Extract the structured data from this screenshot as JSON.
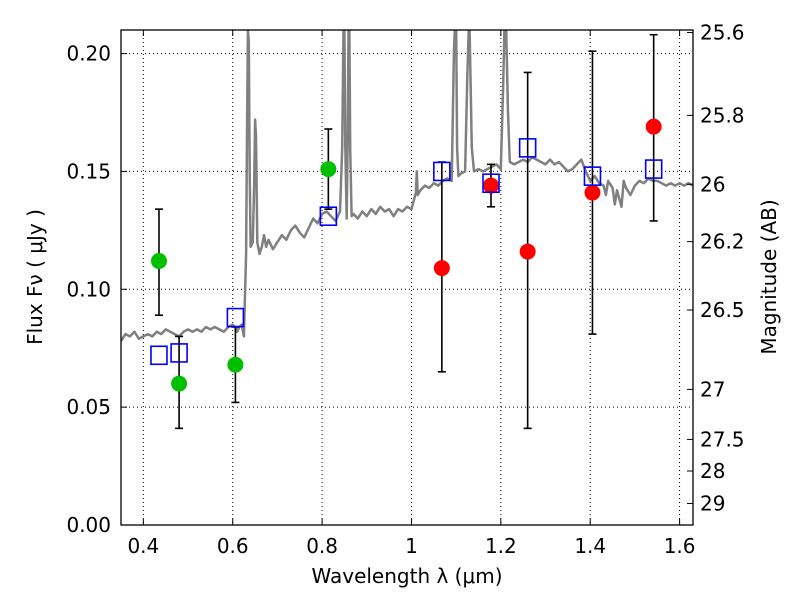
{
  "chart_data": {
    "type": "scatter",
    "title": "",
    "xlabel": "Wavelength  λ (μm)",
    "ylabel": "Flux  Fν  ( μJy )",
    "ylabel2": "Magnitude (AB)",
    "xlim": [
      0.35,
      1.63
    ],
    "ylim": [
      0.0,
      0.21
    ],
    "grid": true,
    "x_ticks": [
      {
        "value": 0.4,
        "label": "0.4"
      },
      {
        "value": 0.6,
        "label": "0.6"
      },
      {
        "value": 0.8,
        "label": "0.8"
      },
      {
        "value": 1.0,
        "label": "1"
      },
      {
        "value": 1.2,
        "label": "1.2"
      },
      {
        "value": 1.4,
        "label": "1.4"
      },
      {
        "value": 1.6,
        "label": "1.6"
      }
    ],
    "y_ticks": [
      {
        "value": 0.0,
        "label": "0.00"
      },
      {
        "value": 0.05,
        "label": "0.05"
      },
      {
        "value": 0.1,
        "label": "0.10"
      },
      {
        "value": 0.15,
        "label": "0.15"
      },
      {
        "value": 0.2,
        "label": "0.20"
      }
    ],
    "y2_ticks": [
      {
        "value": 25.6,
        "label": "25.6"
      },
      {
        "value": 25.8,
        "label": "25.8"
      },
      {
        "value": 26.0,
        "label": "26"
      },
      {
        "value": 26.2,
        "label": "26.2"
      },
      {
        "value": 26.5,
        "label": "26.5"
      },
      {
        "value": 27.0,
        "label": "27"
      },
      {
        "value": 27.5,
        "label": "27.5"
      },
      {
        "value": 28.0,
        "label": "28"
      },
      {
        "value": 29.0,
        "label": "29"
      }
    ],
    "spectrum": {
      "name": "model spectrum",
      "color": "#808080",
      "points": [
        [
          0.35,
          0.078
        ],
        [
          0.36,
          0.081
        ],
        [
          0.37,
          0.08
        ],
        [
          0.38,
          0.082
        ],
        [
          0.39,
          0.079
        ],
        [
          0.4,
          0.08
        ],
        [
          0.41,
          0.081
        ],
        [
          0.42,
          0.08
        ],
        [
          0.43,
          0.082
        ],
        [
          0.44,
          0.081
        ],
        [
          0.45,
          0.083
        ],
        [
          0.46,
          0.082
        ],
        [
          0.47,
          0.081
        ],
        [
          0.48,
          0.08
        ],
        [
          0.49,
          0.082
        ],
        [
          0.5,
          0.083
        ],
        [
          0.51,
          0.082
        ],
        [
          0.52,
          0.083
        ],
        [
          0.53,
          0.082
        ],
        [
          0.54,
          0.084
        ],
        [
          0.55,
          0.083
        ],
        [
          0.56,
          0.084
        ],
        [
          0.57,
          0.083
        ],
        [
          0.58,
          0.082
        ],
        [
          0.59,
          0.084
        ],
        [
          0.6,
          0.085
        ],
        [
          0.605,
          0.084
        ],
        [
          0.61,
          0.082
        ],
        [
          0.615,
          0.084
        ],
        [
          0.62,
          0.085
        ],
        [
          0.625,
          0.08
        ],
        [
          0.63,
          0.115
        ],
        [
          0.632,
          0.165
        ],
        [
          0.634,
          0.21
        ],
        [
          0.636,
          0.205
        ],
        [
          0.638,
          0.15
        ],
        [
          0.64,
          0.118
        ],
        [
          0.645,
          0.12
        ],
        [
          0.648,
          0.145
        ],
        [
          0.65,
          0.172
        ],
        [
          0.652,
          0.165
        ],
        [
          0.655,
          0.12
        ],
        [
          0.66,
          0.115
        ],
        [
          0.665,
          0.118
        ],
        [
          0.67,
          0.123
        ],
        [
          0.675,
          0.118
        ],
        [
          0.68,
          0.121
        ],
        [
          0.69,
          0.117
        ],
        [
          0.7,
          0.12
        ],
        [
          0.71,
          0.123
        ],
        [
          0.72,
          0.121
        ],
        [
          0.73,
          0.125
        ],
        [
          0.74,
          0.127
        ],
        [
          0.75,
          0.124
        ],
        [
          0.76,
          0.122
        ],
        [
          0.77,
          0.126
        ],
        [
          0.78,
          0.13
        ],
        [
          0.79,
          0.128
        ],
        [
          0.8,
          0.132
        ],
        [
          0.81,
          0.133
        ],
        [
          0.82,
          0.131
        ],
        [
          0.83,
          0.129
        ],
        [
          0.84,
          0.133
        ],
        [
          0.845,
          0.16
        ],
        [
          0.848,
          0.21
        ],
        [
          0.85,
          0.21
        ],
        [
          0.852,
          0.16
        ],
        [
          0.855,
          0.13
        ],
        [
          0.857,
          0.16
        ],
        [
          0.859,
          0.21
        ],
        [
          0.861,
          0.21
        ],
        [
          0.863,
          0.16
        ],
        [
          0.866,
          0.131
        ],
        [
          0.87,
          0.132
        ],
        [
          0.88,
          0.13
        ],
        [
          0.89,
          0.133
        ],
        [
          0.9,
          0.131
        ],
        [
          0.91,
          0.134
        ],
        [
          0.92,
          0.132
        ],
        [
          0.93,
          0.135
        ],
        [
          0.94,
          0.133
        ],
        [
          0.95,
          0.134
        ],
        [
          0.96,
          0.131
        ],
        [
          0.97,
          0.134
        ],
        [
          0.98,
          0.133
        ],
        [
          0.99,
          0.135
        ],
        [
          1.0,
          0.134
        ],
        [
          1.01,
          0.141
        ],
        [
          1.012,
          0.15
        ],
        [
          1.014,
          0.14
        ],
        [
          1.02,
          0.142
        ],
        [
          1.03,
          0.144
        ],
        [
          1.04,
          0.143
        ],
        [
          1.05,
          0.145
        ],
        [
          1.06,
          0.144
        ],
        [
          1.07,
          0.146
        ],
        [
          1.08,
          0.147
        ],
        [
          1.09,
          0.146
        ],
        [
          1.095,
          0.2
        ],
        [
          1.097,
          0.21
        ],
        [
          1.1,
          0.21
        ],
        [
          1.102,
          0.16
        ],
        [
          1.105,
          0.148
        ],
        [
          1.11,
          0.149
        ],
        [
          1.12,
          0.15
        ],
        [
          1.125,
          0.19
        ],
        [
          1.128,
          0.21
        ],
        [
          1.13,
          0.21
        ],
        [
          1.135,
          0.16
        ],
        [
          1.14,
          0.15
        ],
        [
          1.15,
          0.151
        ],
        [
          1.16,
          0.15
        ],
        [
          1.17,
          0.151
        ],
        [
          1.18,
          0.152
        ],
        [
          1.19,
          0.153
        ],
        [
          1.2,
          0.151
        ],
        [
          1.205,
          0.185
        ],
        [
          1.208,
          0.21
        ],
        [
          1.212,
          0.21
        ],
        [
          1.216,
          0.175
        ],
        [
          1.22,
          0.154
        ],
        [
          1.23,
          0.153
        ],
        [
          1.24,
          0.154
        ],
        [
          1.25,
          0.155
        ],
        [
          1.26,
          0.154
        ],
        [
          1.27,
          0.156
        ],
        [
          1.28,
          0.155
        ],
        [
          1.29,
          0.154
        ],
        [
          1.3,
          0.153
        ],
        [
          1.31,
          0.155
        ],
        [
          1.32,
          0.153
        ],
        [
          1.33,
          0.154
        ],
        [
          1.34,
          0.152
        ],
        [
          1.35,
          0.15
        ],
        [
          1.36,
          0.151
        ],
        [
          1.37,
          0.153
        ],
        [
          1.38,
          0.155
        ],
        [
          1.39,
          0.15
        ],
        [
          1.4,
          0.146
        ],
        [
          1.41,
          0.148
        ],
        [
          1.42,
          0.145
        ],
        [
          1.43,
          0.144
        ],
        [
          1.435,
          0.14
        ],
        [
          1.44,
          0.146
        ],
        [
          1.45,
          0.143
        ],
        [
          1.455,
          0.136
        ],
        [
          1.46,
          0.142
        ],
        [
          1.47,
          0.135
        ],
        [
          1.475,
          0.146
        ],
        [
          1.48,
          0.143
        ],
        [
          1.49,
          0.14
        ],
        [
          1.5,
          0.144
        ],
        [
          1.51,
          0.146
        ],
        [
          1.52,
          0.145
        ],
        [
          1.53,
          0.147
        ],
        [
          1.54,
          0.146
        ],
        [
          1.55,
          0.146
        ],
        [
          1.56,
          0.145
        ],
        [
          1.57,
          0.144
        ],
        [
          1.58,
          0.145
        ],
        [
          1.59,
          0.144
        ],
        [
          1.6,
          0.145
        ],
        [
          1.61,
          0.144
        ],
        [
          1.62,
          0.145
        ],
        [
          1.63,
          0.144
        ]
      ]
    },
    "series": [
      {
        "name": "green observations",
        "marker": "circle",
        "color": "#00bf00",
        "points": [
          {
            "x": 0.435,
            "y": 0.112,
            "err_low": 0.089,
            "err_high": 0.134
          },
          {
            "x": 0.48,
            "y": 0.06,
            "err_low": 0.041,
            "err_high": 0.08
          },
          {
            "x": 0.606,
            "y": 0.068,
            "err_low": 0.052,
            "err_high": 0.084
          },
          {
            "x": 0.814,
            "y": 0.151,
            "err_low": 0.134,
            "err_high": 0.168
          }
        ]
      },
      {
        "name": "red observations",
        "marker": "circle",
        "color": "#ff0000",
        "points": [
          {
            "x": 1.068,
            "y": 0.109,
            "err_low": 0.065,
            "err_high": 0.154
          },
          {
            "x": 1.178,
            "y": 0.144,
            "err_low": 0.135,
            "err_high": 0.153
          },
          {
            "x": 1.26,
            "y": 0.116,
            "err_low": 0.041,
            "err_high": 0.192
          },
          {
            "x": 1.405,
            "y": 0.141,
            "err_low": 0.081,
            "err_high": 0.201
          },
          {
            "x": 1.542,
            "y": 0.169,
            "err_low": 0.129,
            "err_high": 0.208
          }
        ]
      },
      {
        "name": "model photometry",
        "marker": "square-open",
        "color": "#0000ff",
        "points": [
          {
            "x": 0.435,
            "y": 0.072
          },
          {
            "x": 0.48,
            "y": 0.073
          },
          {
            "x": 0.606,
            "y": 0.088
          },
          {
            "x": 0.814,
            "y": 0.131
          },
          {
            "x": 1.068,
            "y": 0.15
          },
          {
            "x": 1.178,
            "y": 0.145
          },
          {
            "x": 1.26,
            "y": 0.16
          },
          {
            "x": 1.405,
            "y": 0.148
          },
          {
            "x": 1.542,
            "y": 0.151
          }
        ]
      }
    ]
  }
}
